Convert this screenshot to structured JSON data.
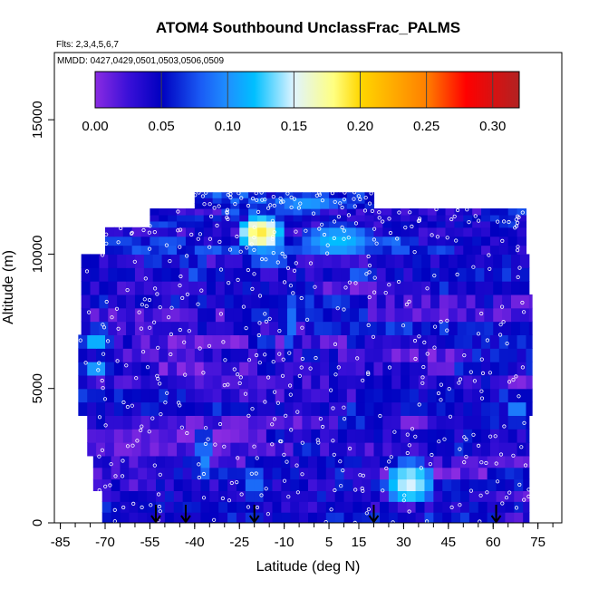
{
  "chart_data": {
    "type": "heatmap",
    "title": "ATOM4 Southbound UnclassFrac_PALMS",
    "subtitle_flights": "Flts: 2,3,4,5,6,7",
    "subtitle_dates": "MMDD: 0427,0429,0501,0503,0506,0509",
    "xlabel": "Latitude (deg N)",
    "ylabel": "Altitude (m)",
    "xlim": [
      -87,
      83
    ],
    "ylim": [
      0,
      17500
    ],
    "x_ticks": [
      -85,
      -70,
      -55,
      -40,
      -25,
      -10,
      5,
      15,
      30,
      45,
      60,
      75
    ],
    "x_tick_labels": [
      "-85",
      "-70",
      "-55",
      "-40",
      "-25",
      "-10",
      "5",
      "15",
      "30",
      "45",
      "60",
      "75"
    ],
    "y_ticks": [
      0,
      5000,
      10000,
      15000
    ],
    "y_tick_labels": [
      "0",
      "5000",
      "10000",
      "15000"
    ],
    "colorbar": {
      "range": [
        0,
        0.32
      ],
      "ticks": [
        0.0,
        0.05,
        0.1,
        0.15,
        0.2,
        0.25,
        0.3
      ],
      "tick_labels": [
        "0.00",
        "0.05",
        "0.10",
        "0.15",
        "0.20",
        "0.25",
        "0.30"
      ],
      "stops": [
        {
          "v": 0.0,
          "c": "#8a2be2"
        },
        {
          "v": 0.025,
          "c": "#3a10d8"
        },
        {
          "v": 0.05,
          "c": "#0000c0"
        },
        {
          "v": 0.08,
          "c": "#1a5cf5"
        },
        {
          "v": 0.1,
          "c": "#1e90ff"
        },
        {
          "v": 0.12,
          "c": "#00bfff"
        },
        {
          "v": 0.15,
          "c": "#e0f4ff"
        },
        {
          "v": 0.18,
          "c": "#ffff80"
        },
        {
          "v": 0.2,
          "c": "#ffd700"
        },
        {
          "v": 0.25,
          "c": "#ff7f00"
        },
        {
          "v": 0.28,
          "c": "#ff0000"
        },
        {
          "v": 0.32,
          "c": "#b22222"
        }
      ]
    },
    "profile_latitudes": [
      -53,
      -43,
      -20,
      20,
      61
    ],
    "layers": [
      {
        "y0": 0,
        "y1": 1200,
        "x0": -71,
        "x1": 72,
        "base": 0.04
      },
      {
        "y0": 1200,
        "y1": 2500,
        "x0": -74,
        "x1": 72,
        "base": 0.035
      },
      {
        "y0": 2500,
        "y1": 4000,
        "x0": -76,
        "x1": 72,
        "base": 0.03
      },
      {
        "y0": 4000,
        "y1": 5500,
        "x0": -79,
        "x1": 73,
        "base": 0.04
      },
      {
        "y0": 5500,
        "y1": 7000,
        "x0": -79,
        "x1": 73,
        "base": 0.035
      },
      {
        "y0": 7000,
        "y1": 8500,
        "x0": -78,
        "x1": 73,
        "base": 0.04
      },
      {
        "y0": 8500,
        "y1": 10000,
        "x0": -78,
        "x1": 72,
        "base": 0.045
      },
      {
        "y0": 10000,
        "y1": 11000,
        "x0": -70,
        "x1": 71,
        "base": 0.05
      },
      {
        "y0": 11000,
        "y1": 11700,
        "x0": -55,
        "x1": 71,
        "base": 0.055
      },
      {
        "y0": 11700,
        "y1": 12300,
        "x0": -40,
        "x1": 20,
        "base": 0.06
      }
    ],
    "hotspots": [
      {
        "x": -18,
        "y": 10800,
        "rx": 8,
        "ry": 700,
        "v": 0.19
      },
      {
        "x": 8,
        "y": 10500,
        "rx": 14,
        "ry": 700,
        "v": 0.12
      },
      {
        "x": 32,
        "y": 1500,
        "rx": 9,
        "ry": 900,
        "v": 0.15
      },
      {
        "x": -73,
        "y": 6800,
        "rx": 5,
        "ry": 500,
        "v": 0.12
      },
      {
        "x": -73,
        "y": 5800,
        "rx": 5,
        "ry": 400,
        "v": 0.11
      },
      {
        "x": -15,
        "y": 10000,
        "rx": 10,
        "ry": 400,
        "v": 0.11
      },
      {
        "x": -8,
        "y": 7500,
        "rx": 3,
        "ry": 1500,
        "v": 0.09
      },
      {
        "x": -37,
        "y": 2500,
        "rx": 3,
        "ry": 1200,
        "v": 0.1
      },
      {
        "x": -20,
        "y": 1500,
        "rx": 3,
        "ry": 800,
        "v": 0.1
      },
      {
        "x": 68,
        "y": 4200,
        "rx": 4,
        "ry": 600,
        "v": 0.1
      },
      {
        "x": -2,
        "y": 11900,
        "rx": 14,
        "ry": 300,
        "v": 0.11
      }
    ]
  }
}
